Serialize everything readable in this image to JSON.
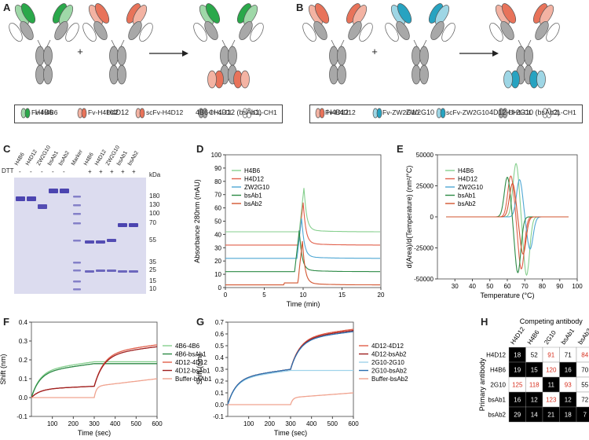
{
  "panels": {
    "A": "A",
    "B": "B",
    "C": "C",
    "D": "D",
    "E": "E",
    "F": "F",
    "G": "G",
    "H": "H"
  },
  "colors": {
    "green": "#2aa84a",
    "salmon": "#e8735a",
    "lightsalmon": "#f3b3a3",
    "teal": "#27a3c1",
    "lightteal": "#9ed6e5",
    "lightgreen": "#9fd8a8",
    "gray": "#a8a8a8"
  },
  "panelA": {
    "ab1": "H4B6",
    "ab2": "H4D12",
    "product": "4B6-H-4D12 (bsAb1)",
    "plus": "+",
    "legend": [
      "Fv-H4B6",
      "Fv-H4D12",
      "scFv-H4D12",
      "CH1-CL",
      "CL-CH1"
    ]
  },
  "panelB": {
    "ab1": "H4D12",
    "ab2": "ZW2G10",
    "product": "4D12-H-2G10 (bsAb2)",
    "plus": "+",
    "legend": [
      "Fv-H4D12",
      "Fv-ZW2G10",
      "scFv-ZW2G10",
      "CH1-CL",
      "CL-CH1"
    ]
  },
  "panelC": {
    "dtt": "DTT",
    "kda": "kDa",
    "lanes": [
      "H4B6",
      "H4D12",
      "ZW2G10",
      "bsAb1",
      "bsAb2",
      "Marker",
      "H4B6",
      "H4D12",
      "ZW2G10",
      "bsAb1",
      "bsAb2"
    ],
    "signs": [
      "-",
      "-",
      "-",
      "-",
      "-",
      "",
      "+",
      "+",
      "+",
      "+",
      "+"
    ],
    "markers": [
      "180",
      "130",
      "100",
      "70",
      "55",
      "35",
      "25",
      "15",
      "10"
    ]
  },
  "chart_data": [
    {
      "type": "line",
      "panel": "D",
      "title": "",
      "xlabel": "Time (min)",
      "ylabel": "Absorbance 280nm (mAU)",
      "xlim": [
        0,
        20
      ],
      "ylim": [
        0,
        100
      ],
      "xticks": [
        0,
        5,
        10,
        15,
        20
      ],
      "yticks": [
        0,
        10,
        20,
        30,
        40,
        50,
        60,
        70,
        80,
        90,
        100
      ],
      "series": [
        {
          "name": "H4B6",
          "baseline": 42,
          "peak_x": 10.1,
          "peak": 75
        },
        {
          "name": "H4D12",
          "baseline": 32,
          "peak_x": 10.0,
          "peak": 64
        },
        {
          "name": "ZW2G10",
          "baseline": 22,
          "peak_x": 9.8,
          "peak": 52
        },
        {
          "name": "bsAb1",
          "baseline": 12,
          "peak_x": 9.5,
          "peak": 43
        },
        {
          "name": "bsAb2",
          "baseline": 2,
          "peak_x": 9.9,
          "peak": 35
        }
      ]
    },
    {
      "type": "line",
      "panel": "E",
      "title": "",
      "xlabel": "Temperature (°C)",
      "ylabel": "d(Area)/d(Temperature) (nm²/°C)",
      "xlim": [
        20,
        100
      ],
      "ylim": [
        -50000,
        50000
      ],
      "xticks": [
        30,
        40,
        50,
        60,
        70,
        80,
        90,
        100
      ],
      "yticks": [
        50000,
        25000,
        0,
        -25000,
        -50000
      ],
      "series": [
        {
          "name": "H4B6",
          "tm": 68,
          "max": 43000,
          "min": -47000
        },
        {
          "name": "H4D12",
          "tm": 65,
          "max": 33000,
          "min": -42000
        },
        {
          "name": "ZW2G10",
          "tm": 70,
          "max": 30000,
          "min": -26000
        },
        {
          "name": "bsAb1",
          "tm": 63,
          "max": 32000,
          "min": -45000
        },
        {
          "name": "bsAb2",
          "tm": 66,
          "max": 27000,
          "min": -30000
        }
      ]
    },
    {
      "type": "line",
      "panel": "F",
      "title": "",
      "xlabel": "Time (sec)",
      "ylabel": "Shift (nm)",
      "xlim": [
        0,
        600
      ],
      "ylim": [
        -0.1,
        0.4
      ],
      "xticks": [
        100,
        200,
        300,
        400,
        500,
        600
      ],
      "yticks": [
        -0.1,
        0.0,
        0.1,
        0.2,
        0.3,
        0.4
      ],
      "series": [
        {
          "name": "4B6-4B6",
          "s1": 0.19,
          "s2": 0.19
        },
        {
          "name": "4B6-bsAb1",
          "s1": 0.18,
          "s2": 0.18
        },
        {
          "name": "4D12-4D12",
          "s1": 0.06,
          "s2": 0.28
        },
        {
          "name": "4D12-bsAb1",
          "s1": 0.06,
          "s2": 0.27
        },
        {
          "name": "Buffer-bsAb1",
          "s1": 0.0,
          "s2": 0.1
        }
      ]
    },
    {
      "type": "line",
      "panel": "G",
      "title": "",
      "xlabel": "Time (sec)",
      "ylabel": "Shift (nm)",
      "xlim": [
        0,
        600
      ],
      "ylim": [
        -0.1,
        0.7
      ],
      "xticks": [
        100,
        200,
        300,
        400,
        500,
        600
      ],
      "yticks": [
        -0.1,
        0.0,
        0.1,
        0.2,
        0.3,
        0.4,
        0.5,
        0.6,
        0.7
      ],
      "series": [
        {
          "name": "4D12-4D12",
          "s1": 0.3,
          "s2": 0.64
        },
        {
          "name": "4D12-bsAb2",
          "s1": 0.3,
          "s2": 0.63
        },
        {
          "name": "2G10-2G10",
          "s1": 0.29,
          "s2": 0.29
        },
        {
          "name": "2G10-bsAb2",
          "s1": 0.3,
          "s2": 0.62
        },
        {
          "name": "Buffer-bsAb2",
          "s1": 0.0,
          "s2": 0.1
        }
      ]
    },
    {
      "type": "heatmap",
      "panel": "H",
      "title": "Competing antibody",
      "ylabel": "Primary antibody",
      "columns": [
        "H4D12",
        "H4B6",
        "2G10",
        "bsAb1",
        "bsAb2"
      ],
      "rows": [
        "H4D12",
        "H4B6",
        "2G10",
        "bsAb1",
        "bsAb2"
      ],
      "values": [
        [
          18,
          52,
          91,
          71,
          84
        ],
        [
          19,
          15,
          120,
          16,
          70
        ],
        [
          125,
          118,
          11,
          93,
          55
        ],
        [
          16,
          12,
          123,
          12,
          72
        ],
        [
          29,
          14,
          21,
          18,
          7
        ]
      ]
    }
  ]
}
